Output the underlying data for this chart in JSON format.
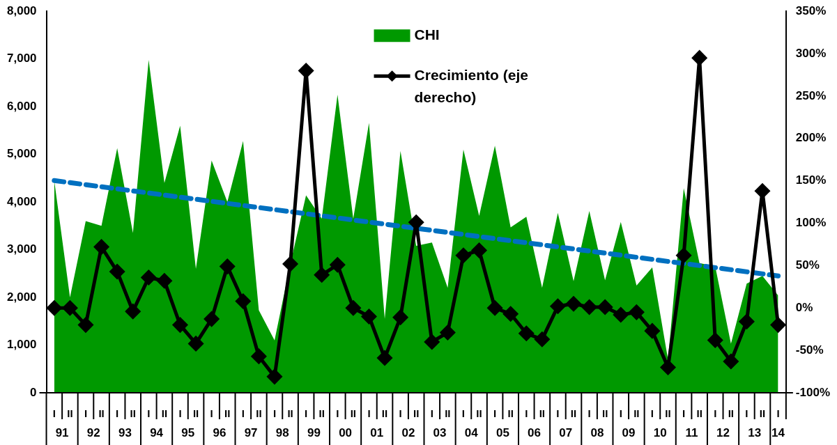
{
  "chart_data": {
    "type": "area",
    "categories": [
      "I",
      "II",
      "I",
      "II",
      "I",
      "II",
      "I",
      "II",
      "I",
      "II",
      "I",
      "II",
      "I",
      "II",
      "I",
      "II",
      "I",
      "II",
      "I",
      "II",
      "I",
      "II",
      "I",
      "II",
      "I",
      "II",
      "I",
      "II",
      "I",
      "II",
      "I",
      "II",
      "I",
      "II",
      "I",
      "II",
      "I",
      "II",
      "I",
      "II",
      "I",
      "II",
      "I",
      "II",
      "I",
      "II",
      "I"
    ],
    "annotations": [
      "91",
      "92",
      "93",
      "94",
      "95",
      "96",
      "97",
      "98",
      "99",
      "00",
      "01",
      "02",
      "03",
      "04",
      "05",
      "06",
      "07",
      "08",
      "09",
      "10",
      "11",
      "12",
      "13",
      "14"
    ],
    "series": [
      {
        "name": "CHI",
        "color": "#009900",
        "values": [
          4450,
          2000,
          3600,
          3500,
          5130,
          3350,
          6980,
          4400,
          5600,
          2600,
          4870,
          4000,
          5280,
          1730,
          1100,
          2700,
          4140,
          3650,
          6250,
          3650,
          5660,
          1550,
          5070,
          3080,
          3150,
          2200,
          5100,
          3710,
          5180,
          3470,
          3690,
          2200,
          3770,
          2340,
          3810,
          2360,
          3580,
          2250,
          2630,
          700,
          4290,
          2720,
          2650,
          1030,
          2290,
          2450,
          2040
        ]
      },
      {
        "name": "Crecimiento (eje derecho)",
        "type": "line",
        "axis": "y2",
        "color": "#000000",
        "marker": "diamond",
        "values": [
          0,
          0,
          -20,
          72,
          43,
          -4,
          36,
          32,
          -20,
          -42,
          -13,
          49,
          8,
          -57,
          -81,
          52,
          280,
          39,
          51,
          0,
          -10,
          -59,
          -11,
          101,
          -40,
          -29,
          62,
          68,
          0,
          -7,
          -30,
          -37,
          2,
          5,
          1,
          1,
          -8,
          -5,
          -27,
          -70,
          62,
          295,
          -38,
          -63,
          -16,
          138,
          -20
        ]
      },
      {
        "type": "line",
        "color": "#0070c0",
        "line_style": "dashed",
        "marker": "none",
        "values": [
          4450,
          null,
          null,
          null,
          null,
          null,
          null,
          null,
          null,
          null,
          null,
          null,
          null,
          null,
          null,
          null,
          null,
          null,
          null,
          null,
          null,
          null,
          null,
          null,
          null,
          null,
          null,
          null,
          null,
          null,
          null,
          null,
          null,
          null,
          null,
          null,
          null,
          null,
          null,
          null,
          null,
          null,
          null,
          null,
          null,
          null,
          2450
        ]
      }
    ],
    "ylim": [
      0,
      8000
    ],
    "yticks": [
      {
        "value": 0,
        "label": "0"
      },
      {
        "value": 1000,
        "label": "1,000"
      },
      {
        "value": 2000,
        "label": "2,000"
      },
      {
        "value": 3000,
        "label": "3,000"
      },
      {
        "value": 4000,
        "label": "4,000"
      },
      {
        "value": 5000,
        "label": "5,000"
      },
      {
        "value": 6000,
        "label": "6,000"
      },
      {
        "value": 7000,
        "label": "7,000"
      },
      {
        "value": 8000,
        "label": "8,000"
      }
    ],
    "y2lim": [
      -100,
      350
    ],
    "y2ticks": [
      {
        "value": -100,
        "label": "-100%"
      },
      {
        "value": -50,
        "label": "-50%"
      },
      {
        "value": 0,
        "label": "0%"
      },
      {
        "value": 50,
        "label": "50%"
      },
      {
        "value": 100,
        "label": "100%"
      },
      {
        "value": 150,
        "label": "150%"
      },
      {
        "value": 200,
        "label": "200%"
      },
      {
        "value": 250,
        "label": "250%"
      },
      {
        "value": 300,
        "label": "300%"
      },
      {
        "value": 350,
        "label": "350%"
      }
    ],
    "grid": false,
    "legend": "top"
  }
}
